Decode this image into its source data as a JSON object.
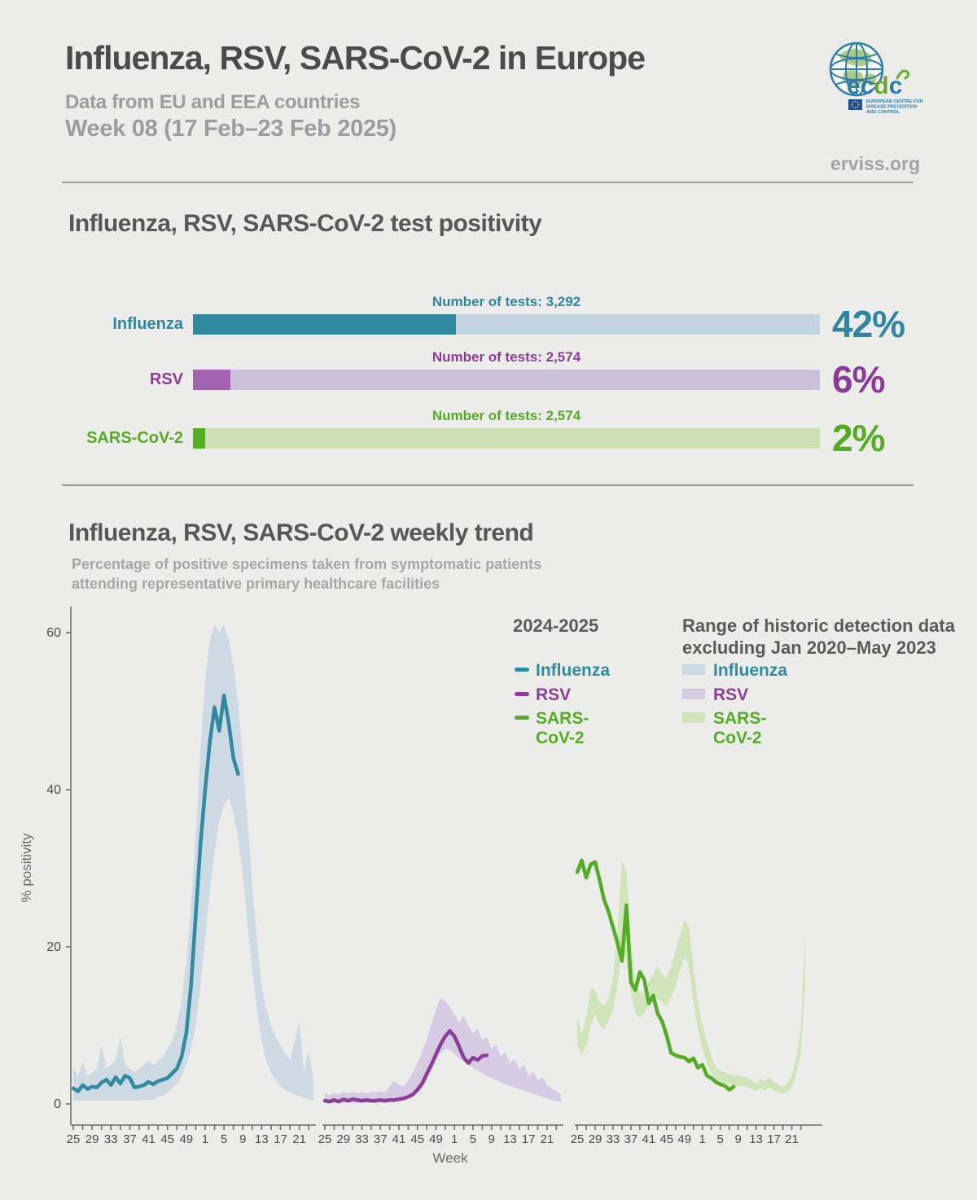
{
  "header": {
    "title": "Influenza, RSV, SARS-CoV-2 in Europe",
    "subtitle1": "Data from EU and EEA countries",
    "subtitle2": "Week 08 (17 Feb–23 Feb 2025)",
    "site": "erviss.org",
    "logo": {
      "text_pre": "ec",
      "text_green": "d",
      "text_post": "c",
      "org_lines": [
        "EUROPEAN CENTRE FOR",
        "DISEASE PREVENTION",
        "AND CONTROL"
      ]
    }
  },
  "positivity": {
    "section_title": "Influenza, RSV, SARS-CoV-2 test positivity",
    "rows": [
      {
        "label": "Influenza",
        "tests_label": "Number of tests: 3,292",
        "percent": 42,
        "percent_label": "42%",
        "accent": "#2F86A0",
        "bar_fill": "#3189A0",
        "bar_track": "#C2D4E0"
      },
      {
        "label": "RSV",
        "tests_label": "Number of tests: 2,574",
        "percent": 6,
        "percent_label": "6%",
        "accent": "#8C3C98",
        "bar_fill": "#A263B0",
        "bar_track": "#CCC1DC"
      },
      {
        "label": "SARS-CoV-2",
        "tests_label": "Number of tests: 2,574",
        "percent": 2,
        "percent_label": "2%",
        "accent": "#55AB24",
        "bar_fill": "#52AE22",
        "bar_track": "#CCE0B2"
      }
    ]
  },
  "trend": {
    "section_title": "Influenza, RSV, SARS-CoV-2 weekly trend",
    "subtitle_line1": "Percentage of positive specimens taken from symptomatic patients",
    "subtitle_line2": "attending representative primary healthcare facilities",
    "legend_current": {
      "title": "2024-2025",
      "items": [
        {
          "label": "Influenza",
          "color": "#2E8BA1"
        },
        {
          "label": "RSV",
          "color": "#8B3E96"
        },
        {
          "label": "SARS-CoV-2",
          "color": "#54AB24"
        }
      ]
    },
    "legend_historic": {
      "title_line1": "Range of historic detection data",
      "title_line2": "excluding Jan 2020–May 2023",
      "items": [
        {
          "label": "Influenza",
          "color": "#2E8BA1",
          "band_color": "#CDD9E3"
        },
        {
          "label": "RSV",
          "color": "#8B3E96",
          "band_color": "#D6CBE3"
        },
        {
          "label": "SARS-CoV-2",
          "color": "#54AB24",
          "band_color": "#D0E4BA"
        }
      ]
    }
  },
  "chart_data": {
    "type": "line",
    "title": "Influenza, RSV, SARS-CoV-2 weekly trend",
    "xlabel": "Week",
    "ylabel": "% positivity",
    "ylim": [
      0,
      62
    ],
    "yticks": [
      0,
      20,
      40,
      60
    ],
    "grid": false,
    "legend_position": "top-right",
    "weeks": [
      25,
      26,
      27,
      28,
      29,
      30,
      31,
      32,
      33,
      34,
      35,
      36,
      37,
      38,
      39,
      40,
      41,
      42,
      43,
      44,
      45,
      46,
      47,
      48,
      49,
      50,
      51,
      52,
      1,
      2,
      3,
      4,
      5,
      6,
      7,
      8,
      9,
      10,
      11,
      12,
      13,
      14,
      15,
      16,
      17,
      18,
      19,
      20,
      21,
      22,
      23,
      24
    ],
    "labeled_week_ticks": [
      25,
      29,
      33,
      37,
      41,
      45,
      49,
      1,
      5,
      9,
      13,
      17,
      21
    ],
    "current_season_weeks_span": "week 25 2024 – week 8 2025",
    "panels": [
      {
        "name": "Influenza",
        "line_color": "#2E8BA1",
        "band_color": "#CDD9E3",
        "current": [
          2,
          1.6,
          2.4,
          1.9,
          2.2,
          2.1,
          2.7,
          3.1,
          2.4,
          3.4,
          2.6,
          3.6,
          3.3,
          2.1,
          2.2,
          2.4,
          2.8,
          2.5,
          2.9,
          3.1,
          3.3,
          3.9,
          4.5,
          6,
          9,
          15,
          24,
          33,
          40,
          46,
          50.5,
          47.5,
          52,
          48.5,
          44,
          42
        ],
        "hist_upper": [
          4.5,
          3.5,
          5.5,
          3.5,
          4,
          4.5,
          7.5,
          4.5,
          5,
          5.5,
          8.5,
          5,
          4.5,
          4,
          4.5,
          5,
          5.5,
          5,
          5.5,
          6,
          7,
          8,
          10,
          13,
          18,
          25,
          34,
          45,
          54,
          59,
          61,
          60,
          61,
          59,
          56,
          51,
          44,
          36,
          28,
          21,
          15,
          12,
          10,
          8.5,
          7.5,
          6.5,
          5.5,
          8,
          10.5,
          4,
          7,
          3
        ],
        "hist_lower": [
          0.4,
          0.4,
          0.4,
          0.4,
          0.4,
          0.4,
          0.4,
          0.4,
          0.4,
          0.4,
          0.4,
          0.4,
          0.4,
          0.4,
          0.4,
          0.5,
          0.5,
          0.5,
          1,
          1,
          1.5,
          2,
          2.5,
          3.5,
          5,
          7,
          10,
          15,
          21,
          27,
          32,
          36,
          38,
          39,
          37,
          34,
          29,
          23,
          17,
          12,
          8,
          5.5,
          4,
          3,
          2.2,
          1.8,
          1.5,
          1.2,
          1,
          0.8,
          0.6,
          0.5
        ]
      },
      {
        "name": "RSV",
        "line_color": "#8B3E96",
        "band_color": "#D6CBE3",
        "current": [
          0.4,
          0.3,
          0.5,
          0.3,
          0.6,
          0.4,
          0.6,
          0.5,
          0.4,
          0.5,
          0.4,
          0.4,
          0.5,
          0.4,
          0.5,
          0.5,
          0.6,
          0.7,
          0.9,
          1.2,
          1.8,
          2.6,
          3.8,
          5,
          6.3,
          7.6,
          8.6,
          9.3,
          8.6,
          7.3,
          5.9,
          5.2,
          5.9,
          5.6,
          6.1,
          6.2
        ],
        "hist_upper": [
          1.4,
          1.1,
          1.4,
          1.2,
          1.5,
          1.4,
          1.5,
          1.4,
          1.5,
          1.4,
          1.5,
          1.5,
          1.6,
          1.5,
          2.2,
          3,
          2.4,
          2.2,
          3,
          4,
          5.2,
          6.6,
          8.2,
          10.2,
          12,
          13.6,
          13,
          12.4,
          11.4,
          10.4,
          11.3,
          9.9,
          9,
          9.6,
          8.1,
          8.5,
          7,
          7.6,
          6.1,
          6.6,
          5.2,
          5.7,
          4.4,
          5,
          3.6,
          4.1,
          3,
          3.4,
          2.4,
          2,
          1.6,
          1.2
        ],
        "hist_lower": [
          0.15,
          0.15,
          0.15,
          0.15,
          0.15,
          0.15,
          0.15,
          0.15,
          0.15,
          0.15,
          0.15,
          0.15,
          0.2,
          0.2,
          0.3,
          0.4,
          0.4,
          0.5,
          0.7,
          1,
          1.4,
          2,
          3,
          4.2,
          5.5,
          6.5,
          7,
          6.8,
          6.3,
          5.8,
          5.4,
          5,
          4.6,
          4.2,
          3.9,
          3.6,
          3.3,
          3,
          2.8,
          2.5,
          2.3,
          2.1,
          1.9,
          1.7,
          1.5,
          1.3,
          1.1,
          0.9,
          0.7,
          0.5,
          0.35,
          0.25
        ]
      },
      {
        "name": "SARS-CoV-2",
        "line_color": "#54AB24",
        "band_color": "#D0E4BA",
        "current": [
          29.5,
          31,
          28.8,
          30.5,
          30.8,
          28.5,
          26,
          24.5,
          22.5,
          20.5,
          18.2,
          25.3,
          15.5,
          14.5,
          16.8,
          15.8,
          12.8,
          13.8,
          11.5,
          10.5,
          8.7,
          6.5,
          6.2,
          6,
          5.9,
          5.4,
          5.8,
          4.6,
          5,
          3.6,
          3.3,
          2.8,
          2.5,
          2.3,
          1.8,
          2.2
        ],
        "hist_upper": [
          11,
          9,
          11,
          14.8,
          14.5,
          13,
          12.5,
          13.5,
          16,
          22,
          31,
          29.5,
          21,
          15.5,
          14,
          14.5,
          15.5,
          16.5,
          17.5,
          16.5,
          16,
          17.5,
          19.5,
          21.5,
          23.4,
          22.5,
          17.5,
          13,
          10,
          7.9,
          6,
          4.8,
          4.2,
          4,
          3.8,
          3.7,
          3.6,
          3.5,
          3.4,
          3,
          2.6,
          3.2,
          2.8,
          3.4,
          2.8,
          2.4,
          2.2,
          2.6,
          3.6,
          5.8,
          9.5,
          21.5
        ],
        "hist_lower": [
          7.5,
          6.3,
          7.5,
          10,
          11.5,
          10,
          9.5,
          10.5,
          12,
          15,
          20,
          18,
          14,
          11.5,
          11,
          11.5,
          12.5,
          13,
          13.5,
          13,
          12.5,
          13.5,
          15,
          17,
          18.7,
          17.5,
          13,
          9.5,
          7,
          5.2,
          4,
          3.2,
          2.8,
          2.6,
          2.5,
          2.4,
          2.3,
          2.2,
          2.1,
          1.9,
          1.6,
          2,
          1.7,
          2.1,
          1.7,
          1.4,
          1.3,
          1.5,
          2.2,
          3.8,
          6.5,
          15
        ]
      }
    ]
  }
}
